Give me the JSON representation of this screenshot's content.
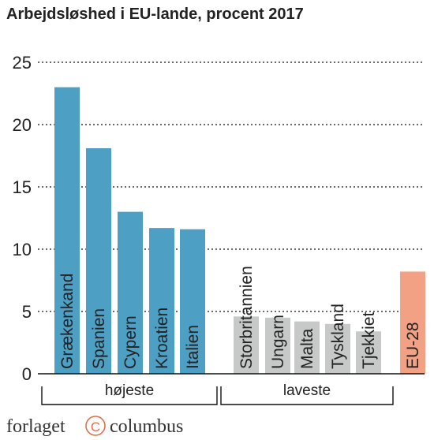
{
  "chart_data": {
    "type": "bar",
    "title": "Arbejdsløshed i EU-lande, procent 2017",
    "xlabel": "",
    "ylabel": "",
    "ylim": [
      0,
      25
    ],
    "yticks": [
      0,
      5,
      10,
      15,
      20,
      25
    ],
    "grid": true,
    "categories": [
      "Grækenkand",
      "Spanien",
      "Cypern",
      "Kroatien",
      "Italien",
      "Storbritannien",
      "Ungarn",
      "Malta",
      "Tyskland",
      "Tjekkiet",
      "EU-28"
    ],
    "values": [
      23.0,
      18.1,
      13.0,
      11.7,
      11.6,
      4.6,
      4.5,
      4.2,
      4.0,
      3.4,
      8.2
    ],
    "groups": [
      {
        "label": "højeste",
        "members": [
          0,
          1,
          2,
          3,
          4
        ],
        "color": "#4d9fc4"
      },
      {
        "label": "laveste",
        "members": [
          5,
          6,
          7,
          8,
          9
        ],
        "color": "#c7c8c8"
      },
      {
        "label": "",
        "members": [
          10
        ],
        "color": "#f2a185"
      }
    ]
  },
  "logo": {
    "left": "forlaget",
    "mark": "C",
    "right": "columbus"
  }
}
